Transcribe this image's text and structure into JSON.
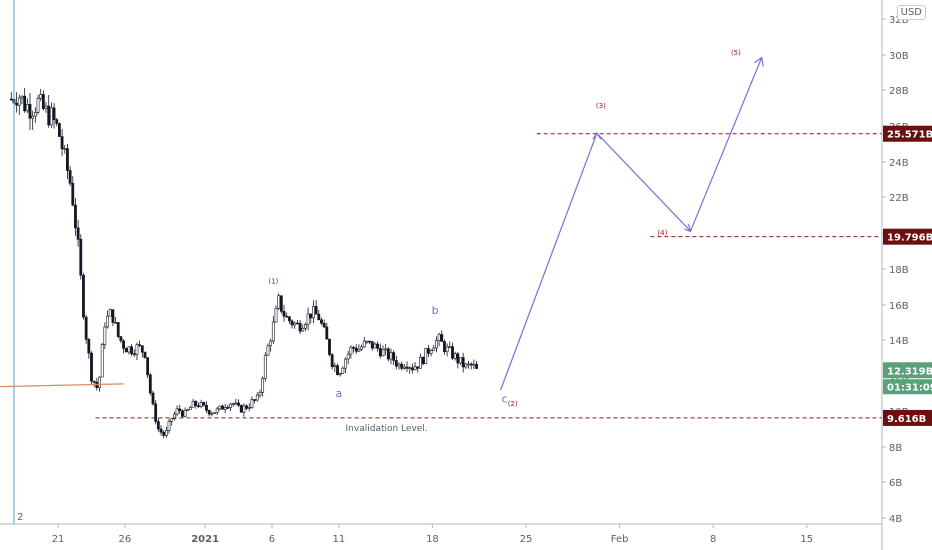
{
  "currency": "USD",
  "chart_data": {
    "type": "candlestick",
    "y_unit": "B",
    "ylim": [
      3.9,
      33.0
    ],
    "y_ticks": [
      {
        "v": 4,
        "label": "4B"
      },
      {
        "v": 6,
        "label": "6B"
      },
      {
        "v": 8,
        "label": "8B"
      },
      {
        "v": 10,
        "label": "10B"
      },
      {
        "v": 12,
        "label": "12B"
      },
      {
        "v": 14,
        "label": "14B"
      },
      {
        "v": 16,
        "label": "16B"
      },
      {
        "v": 18,
        "label": "18B"
      },
      {
        "v": 20,
        "label": "20B"
      },
      {
        "v": 22,
        "label": "22B"
      },
      {
        "v": 24,
        "label": "24B"
      },
      {
        "v": 26,
        "label": "26B"
      },
      {
        "v": 28,
        "label": "28B"
      },
      {
        "v": 30,
        "label": "30B"
      },
      {
        "v": 32,
        "label": "32B"
      }
    ],
    "x_ticks": [
      {
        "day": 21,
        "label": "21",
        "bold": false
      },
      {
        "day": 26,
        "label": "26",
        "bold": false
      },
      {
        "day": 32,
        "label": "2021",
        "bold": true
      },
      {
        "day": 37,
        "label": "6",
        "bold": false
      },
      {
        "day": 42,
        "label": "11",
        "bold": false
      },
      {
        "day": 49,
        "label": "18",
        "bold": false
      },
      {
        "day": 56,
        "label": "25",
        "bold": false
      },
      {
        "day": 63,
        "label": "Feb",
        "bold": false
      },
      {
        "day": 70,
        "label": "8",
        "bold": false
      },
      {
        "day": 77,
        "label": "15",
        "bold": false
      }
    ],
    "series_close": [
      [
        17.5,
        27.5
      ],
      [
        18,
        27.8
      ],
      [
        18.5,
        27.2
      ],
      [
        19,
        27.0
      ],
      [
        19.5,
        27.3
      ],
      [
        20,
        26.8
      ],
      [
        20.5,
        26.5
      ],
      [
        21,
        25.8
      ],
      [
        21.5,
        24.2
      ],
      [
        22,
        22.5
      ],
      [
        22.5,
        19.2
      ],
      [
        23,
        14.8
      ],
      [
        23.5,
        12.0
      ],
      [
        24,
        11.2
      ],
      [
        24.5,
        15.0
      ],
      [
        25,
        15.6
      ],
      [
        25.5,
        14.2
      ],
      [
        26,
        13.6
      ],
      [
        26.5,
        13.5
      ],
      [
        27,
        13.6
      ],
      [
        27.5,
        13.3
      ],
      [
        28,
        10.5
      ],
      [
        28.5,
        9.0
      ],
      [
        29,
        8.6
      ],
      [
        29.5,
        9.6
      ],
      [
        30,
        10.1
      ],
      [
        30.5,
        9.8
      ],
      [
        31,
        10.3
      ],
      [
        31.5,
        10.4
      ],
      [
        32,
        10.1
      ],
      [
        32.5,
        10.0
      ],
      [
        33,
        10.0
      ],
      [
        33.5,
        10.4
      ],
      [
        34,
        10.5
      ],
      [
        34.5,
        10.1
      ],
      [
        35,
        10.2
      ],
      [
        35.5,
        10.5
      ],
      [
        36,
        10.7
      ],
      [
        36.5,
        13.0
      ],
      [
        37,
        14.5
      ],
      [
        37.5,
        16.2
      ],
      [
        38,
        15.3
      ],
      [
        38.5,
        15.0
      ],
      [
        39,
        14.8
      ],
      [
        39.5,
        15.2
      ],
      [
        40,
        15.6
      ],
      [
        40.5,
        15.3
      ],
      [
        41,
        14.2
      ],
      [
        41.5,
        12.8
      ],
      [
        42,
        12.2
      ],
      [
        42.5,
        13.0
      ],
      [
        43,
        13.6
      ],
      [
        43.5,
        13.5
      ],
      [
        44,
        13.8
      ],
      [
        44.5,
        13.7
      ],
      [
        45,
        13.5
      ],
      [
        45.5,
        13.2
      ],
      [
        46,
        13.0
      ],
      [
        46.5,
        12.6
      ],
      [
        47,
        12.8
      ],
      [
        47.5,
        12.5
      ],
      [
        48,
        12.7
      ],
      [
        48.5,
        13.2
      ],
      [
        49,
        13.8
      ],
      [
        49.5,
        14.0
      ],
      [
        50,
        13.5
      ],
      [
        50.5,
        13.2
      ],
      [
        51,
        12.8
      ],
      [
        51.5,
        12.5
      ],
      [
        52,
        12.6
      ],
      [
        52.3,
        12.3
      ]
    ],
    "horizontal_levels": [
      {
        "price": 25.571,
        "label": "25.571B",
        "from_day": 56.8
      },
      {
        "price": 19.796,
        "label": "19.796B",
        "from_day": 65.3
      },
      {
        "price": 9.616,
        "label": "9.616B",
        "from_day": 23.8
      }
    ],
    "current_price": {
      "label": "12.319B",
      "price": 12.319,
      "countdown": "01:31:09"
    },
    "projection_path": [
      [
        54.1,
        11.2
      ],
      [
        61.3,
        25.6
      ],
      [
        68.3,
        20.1
      ],
      [
        73.6,
        29.8
      ]
    ],
    "trend_line": [
      [
        14,
        11.35
      ],
      [
        25.9,
        11.55
      ]
    ],
    "vertical_marker": {
      "day": 17.7,
      "label": "2"
    },
    "wave_labels": [
      {
        "text": "(1)",
        "day": 37.1,
        "price": 17.2
      },
      {
        "text": "(2)",
        "day": 55.0,
        "price": 10.3
      },
      {
        "text": "(3)",
        "day": 61.6,
        "price": 27.0
      },
      {
        "text": "(4)",
        "day": 66.2,
        "price": 19.9
      },
      {
        "text": "(5)",
        "day": 71.7,
        "price": 30.0
      }
    ],
    "abc_labels": [
      {
        "text": "a",
        "day": 42.0,
        "price": 10.8
      },
      {
        "text": "b",
        "day": 49.2,
        "price": 15.5
      },
      {
        "text": "c",
        "day": 54.4,
        "price": 10.5
      }
    ],
    "annotation": {
      "text": "Invalidation Level.",
      "day": 42.5,
      "price": 8.9
    }
  }
}
